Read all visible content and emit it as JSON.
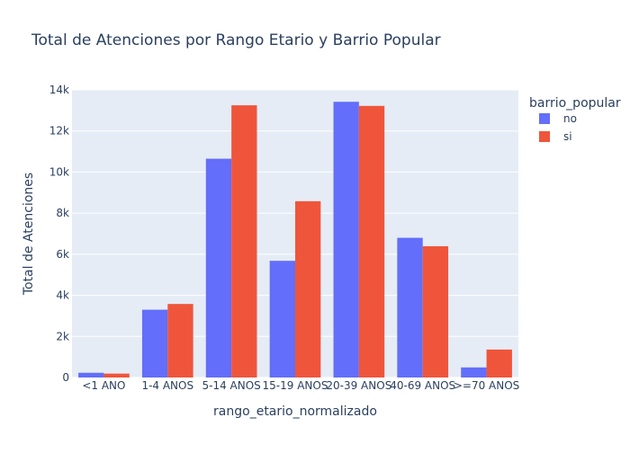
{
  "chart_data": {
    "type": "bar",
    "title": "Total de Atenciones por Rango Etario y Barrio Popular",
    "xlabel": "rango_etario_normalizado",
    "ylabel": "Total de Atenciones",
    "categories": [
      "<1 ANO",
      "1-4 ANOS",
      "5-14 ANOS",
      "15-19 ANOS",
      "20-39 ANOS",
      "40-69 ANOS",
      ">=70 ANOS"
    ],
    "series": [
      {
        "name": "no",
        "values": [
          230,
          3300,
          10650,
          5680,
          13420,
          6800,
          490
        ],
        "color": "#636efa"
      },
      {
        "name": "si",
        "values": [
          190,
          3580,
          13250,
          8580,
          13220,
          6390,
          1360
        ],
        "color": "#ef553b"
      }
    ],
    "ylim": [
      0,
      14000
    ],
    "yticks": [
      0,
      2000,
      4000,
      6000,
      8000,
      10000,
      12000,
      14000
    ],
    "ytick_labels": [
      "0",
      "2k",
      "4k",
      "6k",
      "8k",
      "10k",
      "12k",
      "14k"
    ],
    "legend_title": "barrio_popular",
    "legend_placement": "top-right",
    "grid": true,
    "plot_background": "#e5ecf6"
  }
}
